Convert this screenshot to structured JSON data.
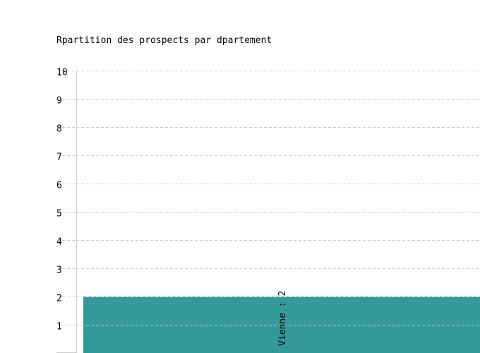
{
  "chart_data": {
    "type": "bar",
    "title": "Rpartition des prospects par dpartement",
    "categories": [
      "Vienne"
    ],
    "values": [
      2
    ],
    "data_labels": [
      "Vienne : 2"
    ],
    "xlabel": "",
    "ylabel": "",
    "ylim": [
      0,
      10
    ],
    "yticks": [
      "1",
      "2",
      "3",
      "4",
      "5",
      "6",
      "7",
      "8",
      "9",
      "10"
    ],
    "grid": true,
    "bar_color": "#339999",
    "grid_color": "#cccccc"
  }
}
